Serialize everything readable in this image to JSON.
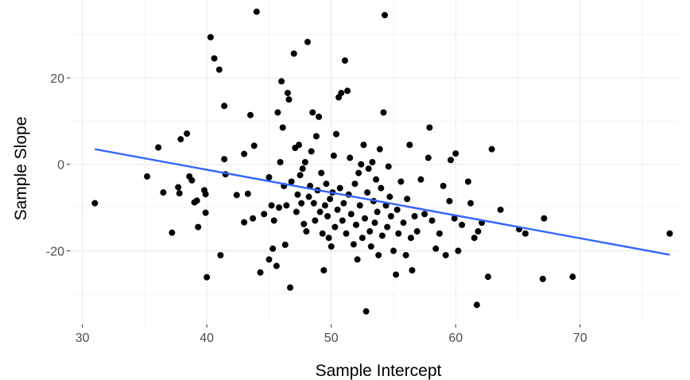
{
  "chart_data": {
    "type": "scatter",
    "title": "",
    "xlabel": "Sample Intercept",
    "ylabel": "Sample Slope",
    "xlim": [
      29,
      78
    ],
    "ylim": [
      -37,
      38
    ],
    "x_ticks": [
      30,
      40,
      50,
      60,
      70
    ],
    "y_ticks": [
      -20,
      0,
      20
    ],
    "grid": true,
    "legend": "none",
    "colors": {
      "point": "#000000",
      "fit_line": "#3366ff",
      "grid": "#ebebeb"
    },
    "fit_line": {
      "x": [
        31.0,
        77.2
      ],
      "y": [
        3.5,
        -20.9
      ]
    },
    "points": [
      {
        "x": 31.0,
        "y": -9.0
      },
      {
        "x": 35.2,
        "y": -2.8
      },
      {
        "x": 36.1,
        "y": 3.9
      },
      {
        "x": 36.5,
        "y": -6.5
      },
      {
        "x": 37.2,
        "y": -15.8
      },
      {
        "x": 37.7,
        "y": -5.3
      },
      {
        "x": 37.8,
        "y": -6.7
      },
      {
        "x": 37.9,
        "y": 5.8
      },
      {
        "x": 38.4,
        "y": 7.1
      },
      {
        "x": 38.6,
        "y": -2.8
      },
      {
        "x": 38.8,
        "y": -3.7
      },
      {
        "x": 39.0,
        "y": -8.8
      },
      {
        "x": 39.2,
        "y": -8.4
      },
      {
        "x": 39.3,
        "y": -14.5
      },
      {
        "x": 39.8,
        "y": -6.0
      },
      {
        "x": 39.9,
        "y": -6.9
      },
      {
        "x": 39.9,
        "y": -11.2
      },
      {
        "x": 40.0,
        "y": -26.1
      },
      {
        "x": 40.3,
        "y": 29.4
      },
      {
        "x": 40.6,
        "y": 24.5
      },
      {
        "x": 41.0,
        "y": 21.9
      },
      {
        "x": 41.1,
        "y": -21.0
      },
      {
        "x": 41.4,
        "y": 13.5
      },
      {
        "x": 41.4,
        "y": 1.2
      },
      {
        "x": 41.5,
        "y": -2.3
      },
      {
        "x": 42.4,
        "y": -7.1
      },
      {
        "x": 43.0,
        "y": -13.4
      },
      {
        "x": 43.0,
        "y": 2.4
      },
      {
        "x": 43.3,
        "y": -6.8
      },
      {
        "x": 43.5,
        "y": 11.4
      },
      {
        "x": 43.7,
        "y": -12.5
      },
      {
        "x": 43.8,
        "y": 4.3
      },
      {
        "x": 44.0,
        "y": 35.3
      },
      {
        "x": 44.3,
        "y": -25.0
      },
      {
        "x": 44.6,
        "y": -11.5
      },
      {
        "x": 45.0,
        "y": -3.0
      },
      {
        "x": 45.0,
        "y": -22.0
      },
      {
        "x": 45.2,
        "y": -9.5
      },
      {
        "x": 45.3,
        "y": -19.5
      },
      {
        "x": 45.4,
        "y": -13.0
      },
      {
        "x": 45.6,
        "y": -23.5
      },
      {
        "x": 45.7,
        "y": 12.0
      },
      {
        "x": 45.8,
        "y": -10.0
      },
      {
        "x": 45.9,
        "y": 0.5
      },
      {
        "x": 46.0,
        "y": 19.2
      },
      {
        "x": 46.1,
        "y": 8.5
      },
      {
        "x": 46.2,
        "y": -5.0
      },
      {
        "x": 46.3,
        "y": -18.6
      },
      {
        "x": 46.4,
        "y": -9.5
      },
      {
        "x": 46.5,
        "y": 16.5
      },
      {
        "x": 46.6,
        "y": 15.0
      },
      {
        "x": 46.7,
        "y": -28.5
      },
      {
        "x": 46.8,
        "y": -4.0
      },
      {
        "x": 47.0,
        "y": 25.6
      },
      {
        "x": 47.1,
        "y": 3.8
      },
      {
        "x": 47.2,
        "y": -11.0
      },
      {
        "x": 47.3,
        "y": -7.0
      },
      {
        "x": 47.4,
        "y": 4.5
      },
      {
        "x": 47.5,
        "y": -2.5
      },
      {
        "x": 47.6,
        "y": -9.0
      },
      {
        "x": 47.7,
        "y": -1.0
      },
      {
        "x": 47.8,
        "y": -13.8
      },
      {
        "x": 47.9,
        "y": 0.5
      },
      {
        "x": 48.0,
        "y": -15.5
      },
      {
        "x": 48.1,
        "y": 28.3
      },
      {
        "x": 48.2,
        "y": -7.5
      },
      {
        "x": 48.3,
        "y": -5.0
      },
      {
        "x": 48.4,
        "y": 3.0
      },
      {
        "x": 48.5,
        "y": 12.0
      },
      {
        "x": 48.6,
        "y": -9.0
      },
      {
        "x": 48.7,
        "y": -13.0
      },
      {
        "x": 48.8,
        "y": 6.5
      },
      {
        "x": 48.9,
        "y": -6.0
      },
      {
        "x": 49.0,
        "y": 11.0
      },
      {
        "x": 49.1,
        "y": -11.0
      },
      {
        "x": 49.2,
        "y": -2.0
      },
      {
        "x": 49.3,
        "y": -16.0
      },
      {
        "x": 49.4,
        "y": -24.5
      },
      {
        "x": 49.5,
        "y": -9.5
      },
      {
        "x": 49.6,
        "y": -4.5
      },
      {
        "x": 49.7,
        "y": -12.0
      },
      {
        "x": 49.8,
        "y": -17.0
      },
      {
        "x": 49.9,
        "y": -8.0
      },
      {
        "x": 50.0,
        "y": -19.0
      },
      {
        "x": 50.1,
        "y": -6.5
      },
      {
        "x": 50.2,
        "y": 2.0
      },
      {
        "x": 50.3,
        "y": -14.5
      },
      {
        "x": 50.4,
        "y": 7.0
      },
      {
        "x": 50.5,
        "y": -10.5
      },
      {
        "x": 50.6,
        "y": 15.5
      },
      {
        "x": 50.7,
        "y": -5.5
      },
      {
        "x": 50.8,
        "y": 16.5
      },
      {
        "x": 50.9,
        "y": -13.0
      },
      {
        "x": 51.0,
        "y": -9.0
      },
      {
        "x": 51.1,
        "y": 24.0
      },
      {
        "x": 51.2,
        "y": -16.0
      },
      {
        "x": 51.3,
        "y": 17.0
      },
      {
        "x": 51.4,
        "y": -7.0
      },
      {
        "x": 51.5,
        "y": 1.5
      },
      {
        "x": 51.6,
        "y": -11.5
      },
      {
        "x": 51.8,
        "y": -18.5
      },
      {
        "x": 51.9,
        "y": -4.5
      },
      {
        "x": 52.0,
        "y": -14.0
      },
      {
        "x": 52.1,
        "y": -22.0
      },
      {
        "x": 52.2,
        "y": -2.0
      },
      {
        "x": 52.3,
        "y": -9.5
      },
      {
        "x": 52.4,
        "y": 0.0
      },
      {
        "x": 52.5,
        "y": -17.0
      },
      {
        "x": 52.6,
        "y": 4.5
      },
      {
        "x": 52.7,
        "y": -12.5
      },
      {
        "x": 52.8,
        "y": -34.0
      },
      {
        "x": 52.9,
        "y": -6.5
      },
      {
        "x": 53.0,
        "y": -1.0
      },
      {
        "x": 53.1,
        "y": -15.5
      },
      {
        "x": 53.2,
        "y": -19.0
      },
      {
        "x": 53.3,
        "y": 0.5
      },
      {
        "x": 53.4,
        "y": -8.5
      },
      {
        "x": 53.5,
        "y": -13.5
      },
      {
        "x": 53.6,
        "y": -3.5
      },
      {
        "x": 53.7,
        "y": -11.0
      },
      {
        "x": 53.8,
        "y": -21.0
      },
      {
        "x": 53.9,
        "y": 3.5
      },
      {
        "x": 54.0,
        "y": -5.5
      },
      {
        "x": 54.1,
        "y": -16.5
      },
      {
        "x": 54.2,
        "y": 12.0
      },
      {
        "x": 54.3,
        "y": 34.5
      },
      {
        "x": 54.4,
        "y": -9.5
      },
      {
        "x": 54.5,
        "y": -14.5
      },
      {
        "x": 54.6,
        "y": -0.5
      },
      {
        "x": 54.7,
        "y": -7.5
      },
      {
        "x": 54.8,
        "y": -12.0
      },
      {
        "x": 55.0,
        "y": -20.0
      },
      {
        "x": 55.2,
        "y": -25.5
      },
      {
        "x": 55.3,
        "y": -10.5
      },
      {
        "x": 55.4,
        "y": -16.0
      },
      {
        "x": 55.6,
        "y": -4.0
      },
      {
        "x": 55.8,
        "y": -13.5
      },
      {
        "x": 56.0,
        "y": -21.0
      },
      {
        "x": 56.1,
        "y": -8.0
      },
      {
        "x": 56.3,
        "y": 4.5
      },
      {
        "x": 56.4,
        "y": -17.0
      },
      {
        "x": 56.5,
        "y": -24.5
      },
      {
        "x": 56.7,
        "y": -12.0
      },
      {
        "x": 56.9,
        "y": -15.5
      },
      {
        "x": 57.2,
        "y": -3.5
      },
      {
        "x": 57.5,
        "y": -11.5
      },
      {
        "x": 57.8,
        "y": 1.5
      },
      {
        "x": 57.9,
        "y": 8.5
      },
      {
        "x": 58.1,
        "y": -13.0
      },
      {
        "x": 58.4,
        "y": -19.5
      },
      {
        "x": 58.7,
        "y": -16.0
      },
      {
        "x": 59.0,
        "y": -5.0
      },
      {
        "x": 59.2,
        "y": -21.0
      },
      {
        "x": 59.5,
        "y": -8.5
      },
      {
        "x": 59.6,
        "y": 1.0
      },
      {
        "x": 59.9,
        "y": -12.5
      },
      {
        "x": 60.0,
        "y": 2.5
      },
      {
        "x": 60.2,
        "y": -20.0
      },
      {
        "x": 60.5,
        "y": -14.0
      },
      {
        "x": 61.0,
        "y": -4.0
      },
      {
        "x": 61.2,
        "y": -9.0
      },
      {
        "x": 61.5,
        "y": -17.0
      },
      {
        "x": 61.7,
        "y": -32.5
      },
      {
        "x": 61.8,
        "y": -15.5
      },
      {
        "x": 62.1,
        "y": -13.5
      },
      {
        "x": 62.6,
        "y": -26.0
      },
      {
        "x": 62.9,
        "y": 3.5
      },
      {
        "x": 63.6,
        "y": -10.5
      },
      {
        "x": 65.1,
        "y": -15.0
      },
      {
        "x": 65.6,
        "y": -16.0
      },
      {
        "x": 67.0,
        "y": -26.5
      },
      {
        "x": 67.1,
        "y": -12.5
      },
      {
        "x": 69.4,
        "y": -26.0
      },
      {
        "x": 77.2,
        "y": -16.0
      }
    ]
  }
}
